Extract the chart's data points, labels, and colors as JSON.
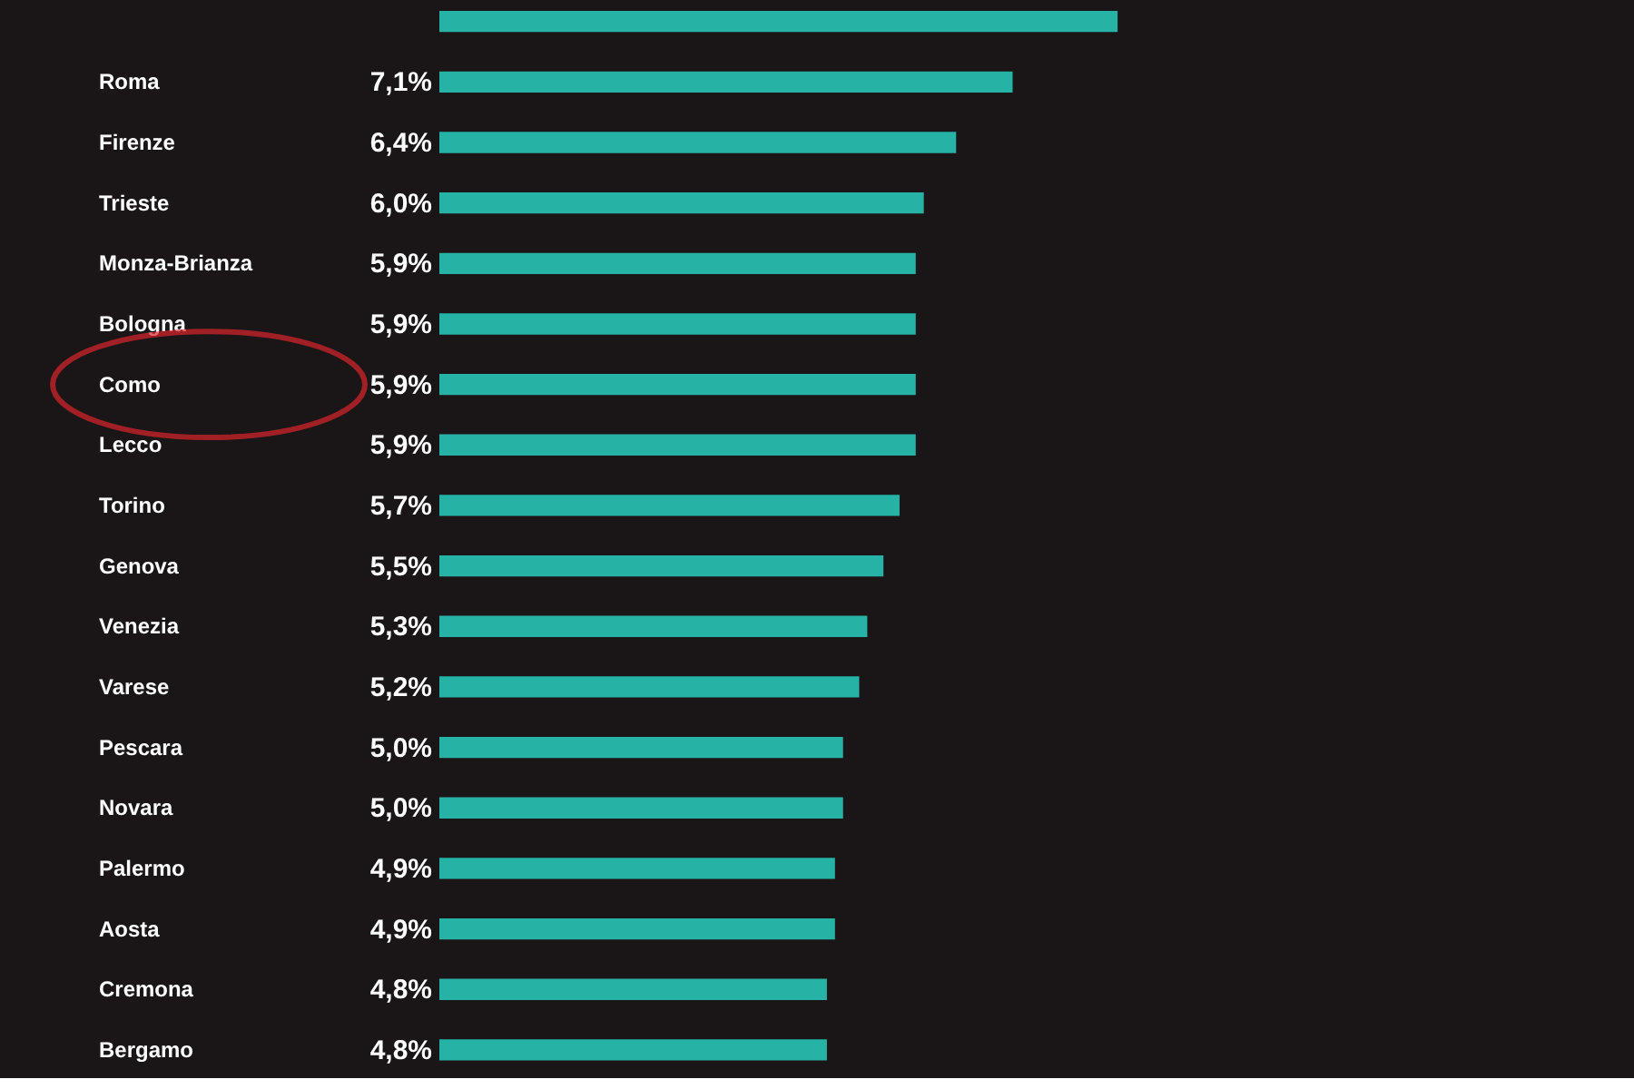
{
  "chart_data": {
    "type": "bar",
    "orientation": "horizontal",
    "categories": [
      null,
      "Roma",
      "Firenze",
      "Trieste",
      "Monza-Brianza",
      "Bologna",
      "Como",
      "Lecco",
      "Torino",
      "Genova",
      "Venezia",
      "Varese",
      "Pescara",
      "Novara",
      "Palermo",
      "Aosta",
      "Cremona",
      "Bergamo"
    ],
    "values": [
      8.4,
      7.1,
      6.4,
      6.0,
      5.9,
      5.9,
      5.9,
      5.9,
      5.7,
      5.5,
      5.3,
      5.2,
      5.0,
      5.0,
      4.9,
      4.9,
      4.8,
      4.8
    ],
    "value_labels": [
      null,
      "7,1%",
      "6,4%",
      "6,0%",
      "5,9%",
      "5,9%",
      "5,9%",
      "5,9%",
      "5,7%",
      "5,5%",
      "5,3%",
      "5,2%",
      "5,0%",
      "5,0%",
      "4,9%",
      "4,9%",
      "4,8%",
      "4,8%"
    ],
    "color": "#26b3a5",
    "grid": false,
    "legend": false
  }
}
